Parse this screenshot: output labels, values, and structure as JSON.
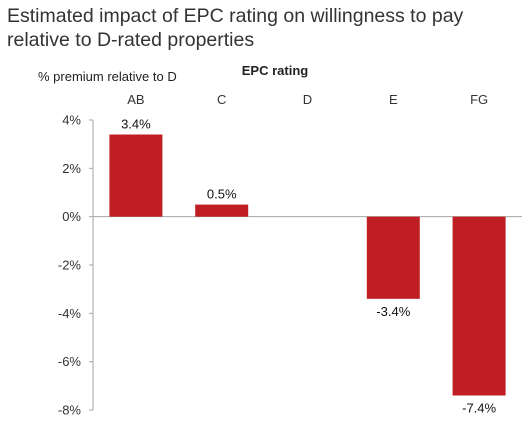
{
  "chart_data": {
    "type": "bar",
    "title": "Estimated impact of EPC rating on willingness to pay relative to D-rated properties",
    "ylabel": "% premium relative to D",
    "xlabel": "EPC rating",
    "categories": [
      "AB",
      "C",
      "D",
      "E",
      "FG"
    ],
    "values": [
      3.4,
      0.5,
      0,
      -3.4,
      -7.4
    ],
    "data_labels": [
      "3.4%",
      "0.5%",
      "",
      "-3.4%",
      "-7.4%"
    ],
    "ylim": [
      -8,
      4
    ],
    "yticks": [
      4,
      2,
      0,
      -2,
      -4,
      -6,
      -8
    ],
    "ytick_labels": [
      "4%",
      "2%",
      "0%",
      "-2%",
      "-4%",
      "-6%",
      "-8%"
    ],
    "category_axis_position": "top",
    "grid": false,
    "colors": {
      "bar": "#bf1e23",
      "axis": "#a6a6a6"
    }
  }
}
